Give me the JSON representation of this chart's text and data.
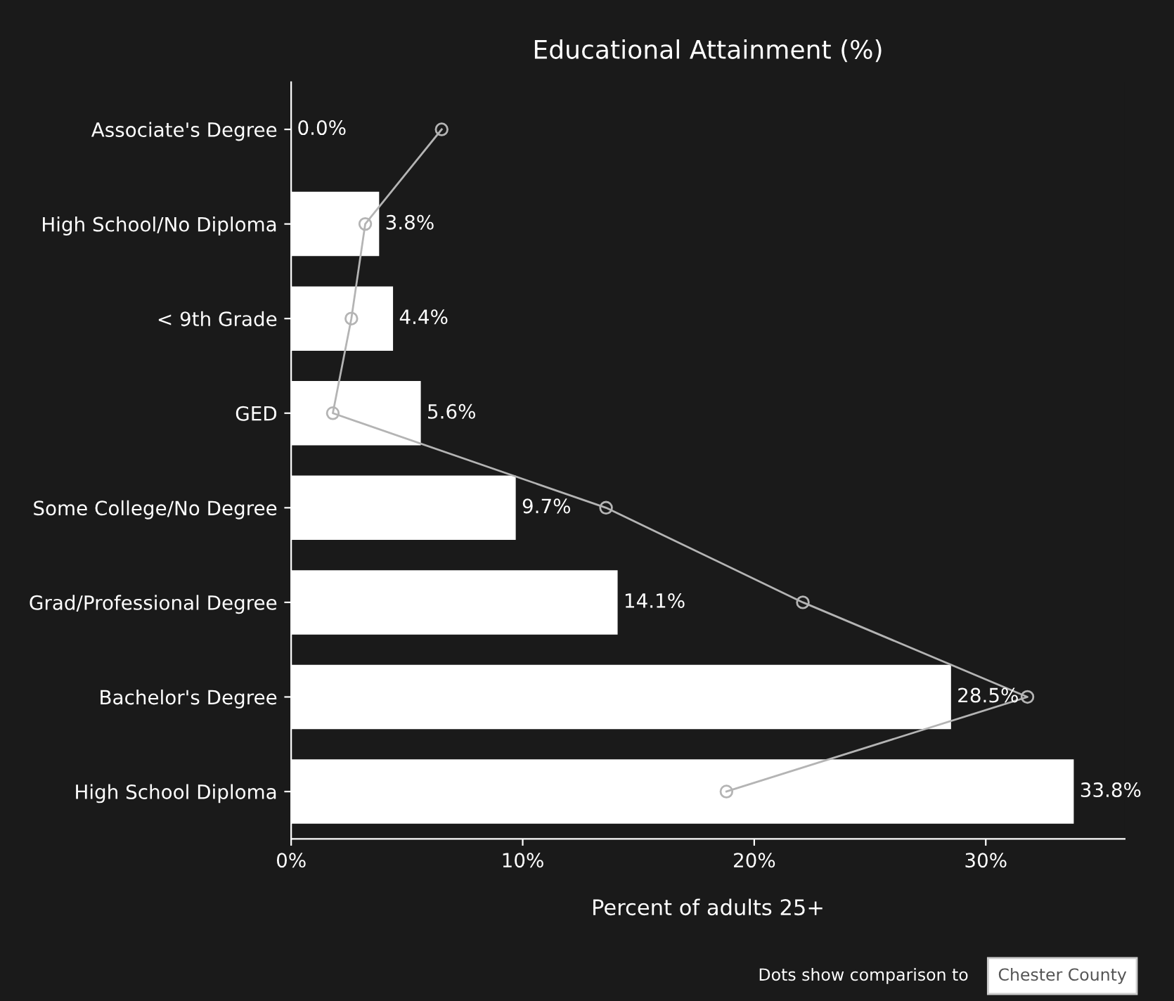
{
  "chart_data": {
    "type": "bar",
    "orientation": "horizontal",
    "title": "Educational Attainment (%)",
    "xlabel": "Percent of adults 25+",
    "categories": [
      "Associate's Degree",
      "High School/No Diploma",
      "< 9th Grade",
      "GED",
      "Some College/No Degree",
      "Grad/Professional Degree",
      "Bachelor's Degree",
      "High School Diploma"
    ],
    "series": [
      {
        "color": "#ffffff",
        "values": [
          0.0,
          3.8,
          4.4,
          5.6,
          9.7,
          14.1,
          28.5,
          33.8
        ],
        "value_labels": [
          "0.0%",
          "3.8%",
          "4.4%",
          "5.6%",
          "9.7%",
          "14.1%",
          "28.5%",
          "33.8%"
        ]
      },
      {
        "type": "line",
        "color": "#b4b4b4",
        "marker": "circle",
        "values": [
          6.5,
          3.2,
          2.6,
          1.8,
          13.6,
          22.1,
          31.8,
          18.8
        ]
      }
    ],
    "xlim": [
      0,
      36
    ],
    "xticks": [
      {
        "value": 0,
        "label": "0%"
      },
      {
        "value": 10,
        "label": "10%"
      },
      {
        "value": 20,
        "label": "20%"
      },
      {
        "value": 30,
        "label": "30%"
      }
    ],
    "grid": false,
    "legend": false,
    "annotations": [
      "Dots show comparison to",
      "Chester County"
    ]
  }
}
